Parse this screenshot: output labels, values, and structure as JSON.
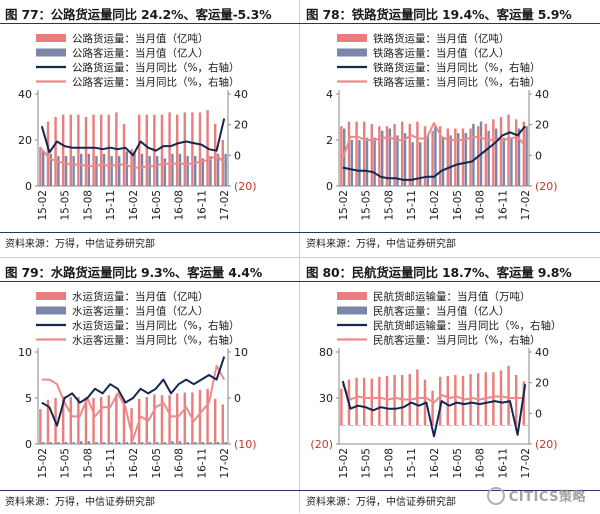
{
  "x_labels": [
    "15-02",
    "15-05",
    "15-08",
    "15-11",
    "16-02",
    "16-05",
    "16-08",
    "16-11",
    "17-02"
  ],
  "source": "资料来源：万得，中信证券研究部",
  "watermark": "CITICS策略",
  "colors": {
    "bar1": "#e87e7e",
    "bar2": "#7b86a8",
    "line1": "#14274e",
    "line2": "#ee8a8a",
    "axis": "#888888",
    "neg_label": "#c0392b"
  },
  "chart_data": [
    {
      "type": "bar",
      "title": "图 77：公路货运量同比 24.2%、客运量-5.3%",
      "legend": [
        "公路货运量：当月值（亿吨）",
        "公路客运量：当月值（亿人）",
        "公路货运量：当月同比（%，右轴）",
        "公路客运量：当月同比（%，右轴）"
      ],
      "left_ticks": [
        "40",
        "20",
        "0"
      ],
      "right_ticks": [
        "40",
        "20",
        "0",
        "(20)"
      ],
      "ylim_left": [
        0,
        40
      ],
      "ylim_right": [
        -20,
        40
      ],
      "x": [
        "15-02",
        "15-03",
        "15-04",
        "15-05",
        "15-06",
        "15-07",
        "15-08",
        "15-09",
        "15-10",
        "15-11",
        "15-12",
        "16-01",
        "16-02",
        "16-03",
        "16-04",
        "16-05",
        "16-06",
        "16-07",
        "16-08",
        "16-09",
        "16-10",
        "16-11",
        "16-12",
        "17-01",
        "17-02"
      ],
      "series": [
        {
          "name": "公路货运量：当月值（亿吨）",
          "kind": "bar",
          "axis": "left",
          "values": [
            17,
            28,
            30,
            31,
            31,
            31,
            30,
            31,
            31,
            31,
            32,
            27,
            16,
            31,
            31,
            31,
            31,
            32,
            31,
            32,
            32,
            32,
            33,
            27,
            20
          ]
        },
        {
          "name": "公路客运量：当月值（亿人）",
          "kind": "bar",
          "axis": "left",
          "values": [
            15,
            14,
            13,
            13,
            13,
            14,
            14,
            13,
            14,
            13,
            13,
            15,
            15,
            14,
            13,
            13,
            12,
            14,
            14,
            13,
            13,
            12,
            13,
            14,
            14
          ]
        },
        {
          "name": "公路货运量：当月同比（%，右轴）",
          "kind": "line",
          "axis": "right",
          "values": [
            19,
            2,
            9,
            6,
            5,
            5,
            5,
            5,
            4,
            5,
            4,
            5,
            0,
            9,
            5,
            3,
            6,
            6,
            8,
            9,
            8,
            7,
            4,
            3,
            24
          ]
        },
        {
          "name": "公路客运量：当月同比（%，右轴）",
          "kind": "line",
          "axis": "right",
          "values": [
            4,
            -2,
            -4,
            -5,
            -6,
            -6,
            -7,
            -7,
            -6,
            -7,
            -6,
            -6,
            -8,
            -8,
            -7,
            -7,
            -5,
            -6,
            -5,
            -6,
            -5,
            -4,
            -3,
            0,
            -5
          ]
        }
      ]
    },
    {
      "type": "bar",
      "title": "图 78：铁路货运量同比 19.4%、客运量 5.9%",
      "legend": [
        "铁路货运量：当月值（亿吨）",
        "铁路客运量：当月值（亿人）",
        "铁路货运量：当月同比（%，右轴）",
        "铁路客运量：当月同比（%，右轴）"
      ],
      "left_ticks": [
        "4",
        "2",
        "0"
      ],
      "right_ticks": [
        "40",
        "20",
        "0",
        "(20)"
      ],
      "ylim_left": [
        0,
        4
      ],
      "ylim_right": [
        -20,
        40
      ],
      "x": [
        "15-02",
        "15-03",
        "15-04",
        "15-05",
        "15-06",
        "15-07",
        "15-08",
        "15-09",
        "15-10",
        "15-11",
        "15-12",
        "16-01",
        "16-02",
        "16-03",
        "16-04",
        "16-05",
        "16-06",
        "16-07",
        "16-08",
        "16-09",
        "16-10",
        "16-11",
        "16-12",
        "17-01",
        "17-02"
      ],
      "series": [
        {
          "name": "铁路货运量：当月值（亿吨）",
          "kind": "bar",
          "axis": "left",
          "values": [
            2.6,
            2.8,
            2.8,
            2.8,
            2.7,
            2.6,
            2.6,
            2.7,
            2.8,
            2.7,
            2.8,
            2.6,
            2.4,
            2.6,
            2.5,
            2.5,
            2.5,
            2.5,
            2.6,
            2.7,
            2.9,
            3.0,
            3.1,
            2.9,
            2.8
          ]
        },
        {
          "name": "铁路客运量：当月值（亿人）",
          "kind": "bar",
          "axis": "left",
          "values": [
            2.5,
            2.0,
            2.0,
            2.1,
            2.1,
            2.4,
            2.5,
            2.2,
            2.3,
            1.9,
            1.9,
            2.2,
            2.6,
            2.1,
            2.2,
            2.3,
            2.3,
            2.7,
            2.8,
            2.4,
            2.5,
            2.1,
            2.1,
            2.5,
            2.6
          ]
        },
        {
          "name": "铁路货运量：当月同比（%，右轴）",
          "kind": "line",
          "axis": "right",
          "values": [
            -8,
            -9,
            -10,
            -10,
            -11,
            -14,
            -15,
            -15,
            -16,
            -16,
            -15,
            -14,
            -14,
            -10,
            -8,
            -6,
            -5,
            -4,
            0,
            4,
            8,
            13,
            15,
            13,
            19
          ]
        },
        {
          "name": "铁路客运量：当月同比（%，右轴）",
          "kind": "line",
          "axis": "right",
          "values": [
            -2,
            12,
            12,
            10,
            10,
            11,
            12,
            10,
            10,
            13,
            11,
            11,
            21,
            12,
            10,
            10,
            10,
            12,
            12,
            10,
            10,
            10,
            11,
            12,
            6
          ]
        }
      ]
    },
    {
      "type": "bar",
      "title": "图 79：水路货运量同比 9.3%、客运量 4.4%",
      "legend": [
        "水运货运量：当月值（亿吨）",
        "水运客运量：当月值（亿人）",
        "水运货运量：当月同比（%，右轴）",
        "水运客运量：当月同比（%，右轴）"
      ],
      "left_ticks": [
        "10",
        "5",
        "0"
      ],
      "right_ticks": [
        "10",
        "0",
        "(10)"
      ],
      "ylim_left": [
        0,
        10
      ],
      "ylim_right": [
        -10,
        10
      ],
      "x": [
        "15-02",
        "15-03",
        "15-04",
        "15-05",
        "15-06",
        "15-07",
        "15-08",
        "15-09",
        "15-10",
        "15-11",
        "15-12",
        "16-01",
        "16-02",
        "16-03",
        "16-04",
        "16-05",
        "16-06",
        "16-07",
        "16-08",
        "16-09",
        "16-10",
        "16-11",
        "16-12",
        "17-01",
        "17-02"
      ],
      "series": [
        {
          "name": "水运货运量：当月值（亿吨）",
          "kind": "bar",
          "axis": "left",
          "values": [
            3.8,
            4.8,
            5.0,
            5.2,
            5.1,
            5.1,
            5.1,
            5.0,
            5.1,
            5.3,
            5.4,
            4.8,
            3.9,
            4.9,
            5.1,
            5.4,
            5.3,
            5.3,
            5.5,
            5.6,
            5.6,
            5.9,
            6.0,
            4.9,
            4.3
          ]
        },
        {
          "name": "水运客运量：当月值（亿人）",
          "kind": "bar",
          "axis": "left",
          "values": [
            0.2,
            0.2,
            0.2,
            0.2,
            0.2,
            0.3,
            0.3,
            0.2,
            0.2,
            0.2,
            0.2,
            0.2,
            0.2,
            0.2,
            0.2,
            0.2,
            0.2,
            0.3,
            0.3,
            0.2,
            0.2,
            0.2,
            0.2,
            0.2,
            0.2
          ]
        },
        {
          "name": "水运货运量：当月同比（%，右轴）",
          "kind": "line",
          "axis": "right",
          "values": [
            -1,
            -2,
            -6,
            0,
            1,
            -1,
            0,
            2,
            1,
            3,
            2,
            -1,
            0,
            2,
            1,
            2,
            4,
            1,
            3,
            4,
            3,
            4,
            5,
            4,
            9
          ]
        },
        {
          "name": "水运客运量：当月同比（%，右轴）",
          "kind": "line",
          "axis": "right",
          "values": [
            4,
            4,
            3,
            -1,
            -4,
            -4,
            0,
            -4,
            -2,
            -2,
            1,
            -2,
            -9,
            -4,
            -5,
            -2,
            -1,
            -4,
            -4,
            -2,
            -5,
            -3,
            -1,
            7,
            4
          ]
        }
      ]
    },
    {
      "type": "bar",
      "title": "图 80：民航货运量同比 18.7%、客运量 9.8%",
      "legend": [
        "民航货邮运输量：当月值（万吨）",
        "民航客运量：当月值（亿人）",
        "民航货邮运输量：当月同比（%，右轴）",
        "民航客运量：当月同比（%，右轴）"
      ],
      "left_ticks": [
        "80",
        "30",
        "(20)"
      ],
      "right_ticks": [
        "40",
        "20",
        "0",
        "(20)"
      ],
      "ylim_left": [
        -20,
        80
      ],
      "ylim_right": [
        -20,
        40
      ],
      "x": [
        "15-02",
        "15-03",
        "15-04",
        "15-05",
        "15-06",
        "15-07",
        "15-08",
        "15-09",
        "15-10",
        "15-11",
        "15-12",
        "16-01",
        "16-02",
        "16-03",
        "16-04",
        "16-05",
        "16-06",
        "16-07",
        "16-08",
        "16-09",
        "16-10",
        "16-11",
        "16-12",
        "17-01",
        "17-02"
      ],
      "series": [
        {
          "name": "民航货邮运输量：当月值（万吨）",
          "kind": "bar",
          "axis": "left",
          "values": [
            40,
            50,
            52,
            52,
            51,
            53,
            54,
            55,
            55,
            56,
            61,
            50,
            38,
            53,
            54,
            55,
            54,
            56,
            57,
            58,
            58,
            60,
            65,
            55,
            48
          ]
        },
        {
          "name": "民航客运量：当月值（亿人）",
          "kind": "bar",
          "axis": "left",
          "values": [
            0.35,
            0.34,
            0.34,
            0.35,
            0.35,
            0.4,
            0.42,
            0.37,
            0.38,
            0.33,
            0.32,
            0.35,
            0.38,
            0.38,
            0.38,
            0.39,
            0.39,
            0.44,
            0.46,
            0.41,
            0.42,
            0.37,
            0.37,
            0.4,
            0.42
          ]
        },
        {
          "name": "民航货邮运输量：当月同比（%，右轴）",
          "kind": "line",
          "axis": "right",
          "values": [
            21,
            3,
            5,
            4,
            2,
            4,
            3,
            3,
            4,
            7,
            5,
            7,
            -15,
            8,
            5,
            7,
            6,
            7,
            6,
            7,
            8,
            7,
            8,
            -14,
            19
          ]
        },
        {
          "name": "民航客运量：当月同比（%，右轴）",
          "kind": "line",
          "axis": "right",
          "values": [
            19,
            9,
            11,
            10,
            10,
            10,
            9,
            10,
            9,
            9,
            10,
            10,
            7,
            12,
            10,
            11,
            9,
            10,
            9,
            10,
            11,
            11,
            10,
            10,
            10
          ]
        }
      ]
    }
  ]
}
